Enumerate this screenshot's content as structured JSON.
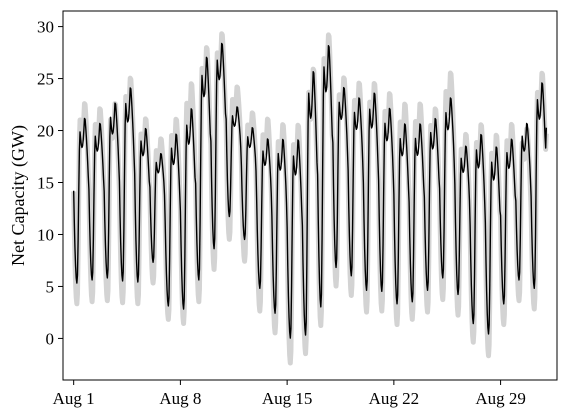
{
  "chart_data": {
    "type": "line",
    "title": "",
    "xlabel": "",
    "ylabel": "Net Capacity (GW)",
    "xlim": [
      -0.7,
      31.7
    ],
    "ylim": [
      -4,
      31.5
    ],
    "grid": false,
    "x_ticks": [
      {
        "value": 0,
        "label": "Aug 1"
      },
      {
        "value": 7,
        "label": "Aug 8"
      },
      {
        "value": 14,
        "label": "Aug 15"
      },
      {
        "value": 21,
        "label": "Aug 22"
      },
      {
        "value": 28,
        "label": "Aug 29"
      }
    ],
    "y_ticks": [
      0,
      5,
      10,
      15,
      20,
      25,
      30
    ],
    "series": [
      {
        "style": "band",
        "color": "#d3d3d3",
        "daily_minimums": [
          3.3,
          3.5,
          3.6,
          3.4,
          3.3,
          5.3,
          1.8,
          1.4,
          3.5,
          6.6,
          9.5,
          7.4,
          2.6,
          0.5,
          -2.4,
          -1.5,
          1.2,
          5.0,
          4.1,
          2.5,
          2.6,
          1.3,
          1.8,
          2.5,
          3.7,
          2.2,
          -0.4,
          -1.7,
          1.3,
          3.6,
          2.8,
          12.0
        ],
        "daily_maximums": [
          23.0,
          22.5,
          23.0,
          25.5,
          21.5,
          19.5,
          21.5,
          25.0,
          28.5,
          29.8,
          24.5,
          22.0,
          21.5,
          21.0,
          21.0,
          26.5,
          29.8,
          25.5,
          25.0,
          25.0,
          24.0,
          23.0,
          23.0,
          22.5,
          26.0,
          20.0,
          21.0,
          20.0,
          21.0,
          20.5,
          26.0,
          26.0
        ]
      },
      {
        "style": "line",
        "color": "#000000",
        "daily_minimums": [
          5.3,
          5.6,
          5.8,
          5.5,
          5.4,
          7.3,
          3.1,
          2.8,
          5.6,
          8.6,
          11.7,
          9.5,
          4.8,
          2.4,
          0.0,
          0.3,
          3.0,
          6.8,
          6.0,
          4.6,
          4.5,
          3.3,
          3.5,
          4.6,
          5.8,
          4.2,
          1.4,
          0.4,
          3.3,
          5.6,
          4.8,
          14.5
        ],
        "daily_maximums": [
          21.5,
          21.0,
          23.0,
          24.5,
          20.5,
          18.0,
          20.0,
          22.5,
          27.5,
          28.8,
          22.5,
          20.5,
          19.5,
          19.5,
          19.5,
          26.2,
          28.7,
          24.5,
          23.5,
          24.0,
          22.5,
          21.0,
          21.0,
          21.5,
          23.5,
          18.8,
          20.0,
          18.8,
          19.5,
          21.0,
          25.0,
          25.0
        ]
      }
    ]
  }
}
